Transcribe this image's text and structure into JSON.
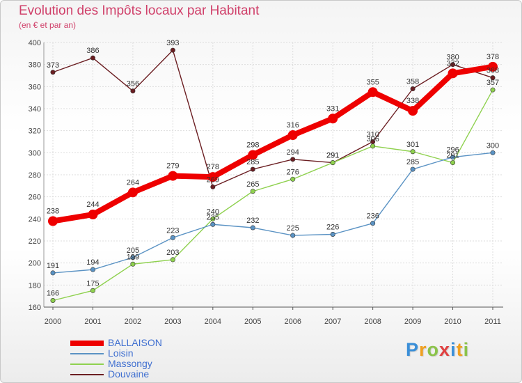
{
  "header": {
    "title": "Evolution des Impôts locaux par Habitant",
    "subtitle": "(en € et par an)"
  },
  "chart_data": {
    "type": "line",
    "title": "Evolution des Impôts locaux par Habitant",
    "subtitle": "(en € et par an)",
    "xlabel": "",
    "ylabel": "",
    "categories": [
      "2000",
      "2001",
      "2002",
      "2003",
      "2004",
      "2005",
      "2006",
      "2007",
      "2008",
      "2009",
      "2010",
      "2011"
    ],
    "ylim": [
      160,
      400
    ],
    "yticks": [
      160,
      180,
      200,
      220,
      240,
      260,
      280,
      300,
      320,
      340,
      360,
      380,
      400
    ],
    "grid": true,
    "legend_position": "bottom-left",
    "series": [
      {
        "name": "Douvaine",
        "color": "#6b1e22",
        "values": [
          373,
          386,
          356,
          393,
          269,
          285,
          294,
          291,
          310,
          358,
          380,
          368
        ]
      },
      {
        "name": "Massongy",
        "color": "#8fd14f",
        "values": [
          166,
          175,
          199,
          203,
          240,
          265,
          276,
          291,
          306,
          301,
          291,
          357
        ]
      },
      {
        "name": "Loisin",
        "color": "#5b93c4",
        "values": [
          191,
          194,
          205,
          223,
          235,
          232,
          225,
          226,
          236,
          285,
          296,
          300
        ]
      },
      {
        "name": "BALLAISON",
        "color": "#ee0000",
        "values": [
          238,
          244,
          264,
          279,
          278,
          298,
          316,
          331,
          355,
          338,
          372,
          378
        ]
      }
    ]
  },
  "legend": {
    "items": [
      {
        "name": "BALLAISON",
        "color": "#ee0000"
      },
      {
        "name": "Loisin",
        "color": "#5b93c4"
      },
      {
        "name": "Massongy",
        "color": "#8fd14f"
      },
      {
        "name": "Douvaine",
        "color": "#6b1e22"
      }
    ]
  },
  "logo": {
    "letters": [
      "P",
      "r",
      "o",
      "x",
      "i",
      "t",
      "i"
    ],
    "colors": [
      "#3a8fd8",
      "#f0a020",
      "#8bc34a",
      "#e04040",
      "#3a8fd8",
      "#f0a020",
      "#8bc34a"
    ]
  }
}
